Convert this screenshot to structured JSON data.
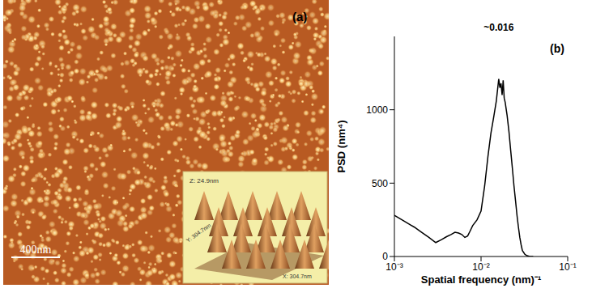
{
  "image": {
    "panel_label": "(a)",
    "scale_bar": "400nm",
    "inset": {
      "z": "Z: 24.9nm",
      "y": "Y: 304.7nm",
      "x": "X: 304.7nm"
    }
  },
  "chart_data": {
    "type": "line",
    "panel_label": "(b)",
    "x_label": "Spatial frequency (nm)⁻¹",
    "y_label": "PSD (nm⁴)",
    "log": "x",
    "color": "#000000",
    "x": [
      0.001,
      0.0013,
      0.0017,
      0.002,
      0.0025,
      0.003,
      0.0035,
      0.004,
      0.0045,
      0.005,
      0.0055,
      0.006,
      0.0065,
      0.007,
      0.0075,
      0.008,
      0.009,
      0.01,
      0.011,
      0.012,
      0.013,
      0.014,
      0.015,
      0.016,
      0.0165,
      0.017,
      0.0175,
      0.018,
      0.0185,
      0.019,
      0.02,
      0.021,
      0.022,
      0.023,
      0.024,
      0.025,
      0.026,
      0.027,
      0.028,
      0.029,
      0.03,
      0.032,
      0.034,
      0.036,
      0.04
    ],
    "values": [
      280,
      240,
      200,
      170,
      130,
      95,
      115,
      135,
      150,
      165,
      160,
      150,
      130,
      140,
      175,
      210,
      250,
      310,
      480,
      680,
      840,
      950,
      1060,
      1210,
      1150,
      1180,
      1100,
      1200,
      1080,
      1050,
      960,
      850,
      720,
      600,
      480,
      380,
      280,
      200,
      130,
      80,
      40,
      15,
      5,
      2,
      0
    ],
    "xlim": [
      0.001,
      0.1
    ],
    "xticks": [
      {
        "value": 0.001,
        "label": "10⁻³"
      },
      {
        "value": 0.01,
        "label": "10⁻²"
      },
      {
        "value": 0.1,
        "label": "10⁻¹"
      }
    ],
    "ylim": [
      0,
      1500
    ],
    "yticks": [
      0,
      500,
      1000
    ],
    "annotations": [
      {
        "text": "~0.016",
        "x": 0.016,
        "y": 1210
      }
    ]
  }
}
